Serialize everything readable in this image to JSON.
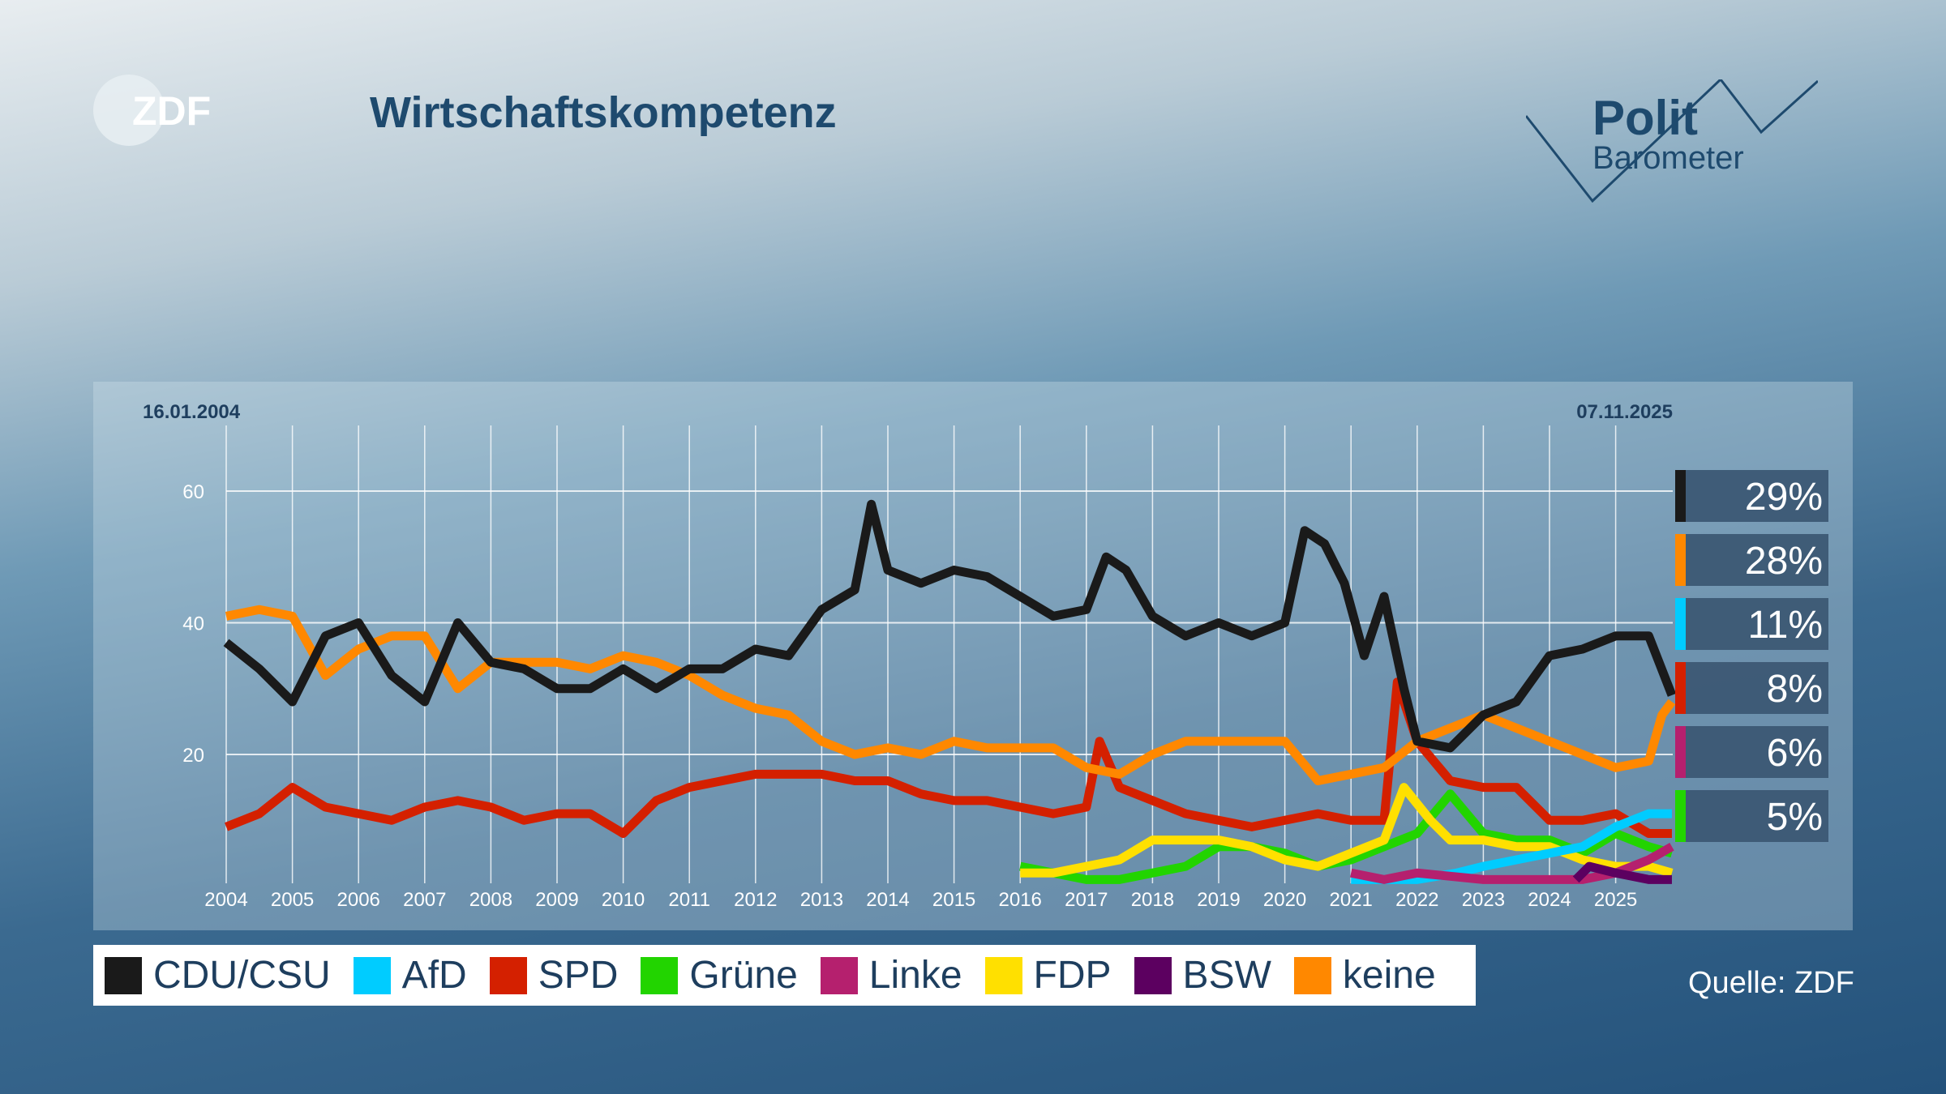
{
  "header": {
    "logo_text": "ZDF",
    "title": "Wirtschaftskompetenz",
    "brand_line1": "Polit",
    "brand_line2": "Barometer"
  },
  "source": "Quelle: ZDF",
  "chart_data": {
    "type": "line",
    "title": "Wirtschaftskompetenz",
    "start_date": "16.01.2004",
    "end_date": "07.11.2025",
    "xlim": [
      2004,
      2025.9
    ],
    "ylim": [
      0,
      68
    ],
    "yticks": [
      20,
      40,
      60
    ],
    "xticks": [
      2004,
      2005,
      2006,
      2007,
      2008,
      2009,
      2010,
      2011,
      2012,
      2013,
      2014,
      2015,
      2016,
      2017,
      2018,
      2019,
      2020,
      2021,
      2022,
      2023,
      2024,
      2025
    ],
    "grid": true,
    "legend_placement": "bottom",
    "series": [
      {
        "name": "CDU/CSU",
        "color": "#1a1a1a",
        "latest": "29%",
        "points": [
          [
            2004,
            37
          ],
          [
            2004.5,
            33
          ],
          [
            2005,
            28
          ],
          [
            2005.5,
            38
          ],
          [
            2006,
            40
          ],
          [
            2006.5,
            32
          ],
          [
            2007,
            28
          ],
          [
            2007.5,
            40
          ],
          [
            2008,
            34
          ],
          [
            2008.5,
            33
          ],
          [
            2009,
            30
          ],
          [
            2009.5,
            30
          ],
          [
            2010,
            33
          ],
          [
            2010.5,
            30
          ],
          [
            2011,
            33
          ],
          [
            2011.5,
            33
          ],
          [
            2012,
            36
          ],
          [
            2012.5,
            35
          ],
          [
            2013,
            42
          ],
          [
            2013.5,
            45
          ],
          [
            2013.75,
            58
          ],
          [
            2014,
            48
          ],
          [
            2014.5,
            46
          ],
          [
            2015,
            48
          ],
          [
            2015.5,
            47
          ],
          [
            2016,
            44
          ],
          [
            2016.5,
            41
          ],
          [
            2017,
            42
          ],
          [
            2017.3,
            50
          ],
          [
            2017.6,
            48
          ],
          [
            2018,
            41
          ],
          [
            2018.5,
            38
          ],
          [
            2019,
            40
          ],
          [
            2019.5,
            38
          ],
          [
            2020,
            40
          ],
          [
            2020.3,
            54
          ],
          [
            2020.6,
            52
          ],
          [
            2020.9,
            46
          ],
          [
            2021.2,
            35
          ],
          [
            2021.5,
            44
          ],
          [
            2021.8,
            30
          ],
          [
            2022,
            22
          ],
          [
            2022.5,
            21
          ],
          [
            2023,
            26
          ],
          [
            2023.5,
            28
          ],
          [
            2024,
            35
          ],
          [
            2024.5,
            36
          ],
          [
            2025,
            38
          ],
          [
            2025.5,
            38
          ],
          [
            2025.85,
            29
          ]
        ]
      },
      {
        "name": "AfD",
        "color": "#00ccff",
        "latest": "11%",
        "points": [
          [
            2021,
            1
          ],
          [
            2022,
            1
          ],
          [
            2022.6,
            2
          ],
          [
            2023,
            3
          ],
          [
            2023.5,
            4
          ],
          [
            2024,
            5
          ],
          [
            2024.5,
            6
          ],
          [
            2025,
            9
          ],
          [
            2025.5,
            11
          ],
          [
            2025.85,
            11
          ]
        ]
      },
      {
        "name": "SPD",
        "color": "#d42000",
        "latest": "8%",
        "points": [
          [
            2004,
            9
          ],
          [
            2004.5,
            11
          ],
          [
            2005,
            15
          ],
          [
            2005.5,
            12
          ],
          [
            2006,
            11
          ],
          [
            2006.5,
            10
          ],
          [
            2007,
            12
          ],
          [
            2007.5,
            13
          ],
          [
            2008,
            12
          ],
          [
            2008.5,
            10
          ],
          [
            2009,
            11
          ],
          [
            2009.5,
            11
          ],
          [
            2010,
            8
          ],
          [
            2010.5,
            13
          ],
          [
            2011,
            15
          ],
          [
            2011.5,
            16
          ],
          [
            2012,
            17
          ],
          [
            2012.5,
            17
          ],
          [
            2013,
            17
          ],
          [
            2013.5,
            16
          ],
          [
            2014,
            16
          ],
          [
            2014.5,
            14
          ],
          [
            2015,
            13
          ],
          [
            2015.5,
            13
          ],
          [
            2016,
            12
          ],
          [
            2016.5,
            11
          ],
          [
            2017,
            12
          ],
          [
            2017.2,
            22
          ],
          [
            2017.5,
            15
          ],
          [
            2018,
            13
          ],
          [
            2018.5,
            11
          ],
          [
            2019,
            10
          ],
          [
            2019.5,
            9
          ],
          [
            2020,
            10
          ],
          [
            2020.5,
            11
          ],
          [
            2021,
            10
          ],
          [
            2021.5,
            10
          ],
          [
            2021.7,
            31
          ],
          [
            2022,
            22
          ],
          [
            2022.5,
            16
          ],
          [
            2023,
            15
          ],
          [
            2023.5,
            15
          ],
          [
            2024,
            10
          ],
          [
            2024.5,
            10
          ],
          [
            2025,
            11
          ],
          [
            2025.5,
            8
          ],
          [
            2025.85,
            8
          ]
        ]
      },
      {
        "name": "Grüne",
        "color": "#22d400",
        "latest": "5%",
        "points": [
          [
            2016,
            3
          ],
          [
            2016.5,
            2
          ],
          [
            2017,
            1
          ],
          [
            2017.5,
            1
          ],
          [
            2018,
            2
          ],
          [
            2018.5,
            3
          ],
          [
            2019,
            6
          ],
          [
            2019.5,
            6
          ],
          [
            2020,
            5
          ],
          [
            2020.5,
            3
          ],
          [
            2021,
            4
          ],
          [
            2021.5,
            6
          ],
          [
            2022,
            8
          ],
          [
            2022.5,
            14
          ],
          [
            2023,
            8
          ],
          [
            2023.5,
            7
          ],
          [
            2024,
            7
          ],
          [
            2024.5,
            5
          ],
          [
            2025,
            8
          ],
          [
            2025.5,
            6
          ],
          [
            2025.85,
            5
          ]
        ]
      },
      {
        "name": "Linke",
        "color": "#b5206e",
        "latest": "6%",
        "points": [
          [
            2021,
            2
          ],
          [
            2021.5,
            1
          ],
          [
            2022,
            2
          ],
          [
            2023,
            1
          ],
          [
            2024,
            1
          ],
          [
            2024.5,
            1
          ],
          [
            2025,
            2
          ],
          [
            2025.5,
            4
          ],
          [
            2025.85,
            6
          ]
        ]
      },
      {
        "name": "FDP",
        "color": "#ffe000",
        "latest": null,
        "points": [
          [
            2016,
            2
          ],
          [
            2016.5,
            2
          ],
          [
            2017,
            3
          ],
          [
            2017.5,
            4
          ],
          [
            2018,
            7
          ],
          [
            2018.5,
            7
          ],
          [
            2019,
            7
          ],
          [
            2019.5,
            6
          ],
          [
            2020,
            4
          ],
          [
            2020.5,
            3
          ],
          [
            2021,
            5
          ],
          [
            2021.5,
            7
          ],
          [
            2021.8,
            15
          ],
          [
            2022.2,
            10
          ],
          [
            2022.5,
            7
          ],
          [
            2023,
            7
          ],
          [
            2023.5,
            6
          ],
          [
            2024,
            6
          ],
          [
            2024.5,
            4
          ],
          [
            2025,
            3
          ],
          [
            2025.5,
            3
          ],
          [
            2025.85,
            2
          ]
        ]
      },
      {
        "name": "BSW",
        "color": "#5c0060",
        "latest": null,
        "points": [
          [
            2024.4,
            1
          ],
          [
            2024.6,
            3
          ],
          [
            2025,
            2
          ],
          [
            2025.5,
            1
          ],
          [
            2025.85,
            1
          ]
        ]
      },
      {
        "name": "keine",
        "color": "#ff8800",
        "latest": "28%",
        "points": [
          [
            2004,
            41
          ],
          [
            2004.5,
            42
          ],
          [
            2005,
            41
          ],
          [
            2005.5,
            32
          ],
          [
            2006,
            36
          ],
          [
            2006.5,
            38
          ],
          [
            2007,
            38
          ],
          [
            2007.5,
            30
          ],
          [
            2008,
            34
          ],
          [
            2008.5,
            34
          ],
          [
            2009,
            34
          ],
          [
            2009.5,
            33
          ],
          [
            2010,
            35
          ],
          [
            2010.5,
            34
          ],
          [
            2011,
            32
          ],
          [
            2011.5,
            29
          ],
          [
            2012,
            27
          ],
          [
            2012.5,
            26
          ],
          [
            2013,
            22
          ],
          [
            2013.5,
            20
          ],
          [
            2014,
            21
          ],
          [
            2014.5,
            20
          ],
          [
            2015,
            22
          ],
          [
            2015.5,
            21
          ],
          [
            2016,
            21
          ],
          [
            2016.5,
            21
          ],
          [
            2017,
            18
          ],
          [
            2017.5,
            17
          ],
          [
            2018,
            20
          ],
          [
            2018.5,
            22
          ],
          [
            2019,
            22
          ],
          [
            2019.5,
            22
          ],
          [
            2020,
            22
          ],
          [
            2020.5,
            16
          ],
          [
            2021,
            17
          ],
          [
            2021.5,
            18
          ],
          [
            2022,
            22
          ],
          [
            2022.5,
            24
          ],
          [
            2023,
            26
          ],
          [
            2023.5,
            24
          ],
          [
            2024,
            22
          ],
          [
            2024.5,
            20
          ],
          [
            2025,
            18
          ],
          [
            2025.5,
            19
          ],
          [
            2025.7,
            26
          ],
          [
            2025.85,
            28
          ]
        ]
      }
    ],
    "latest_values_order": [
      "CDU/CSU",
      "keine",
      "AfD",
      "SPD",
      "Linke",
      "Grüne"
    ]
  }
}
